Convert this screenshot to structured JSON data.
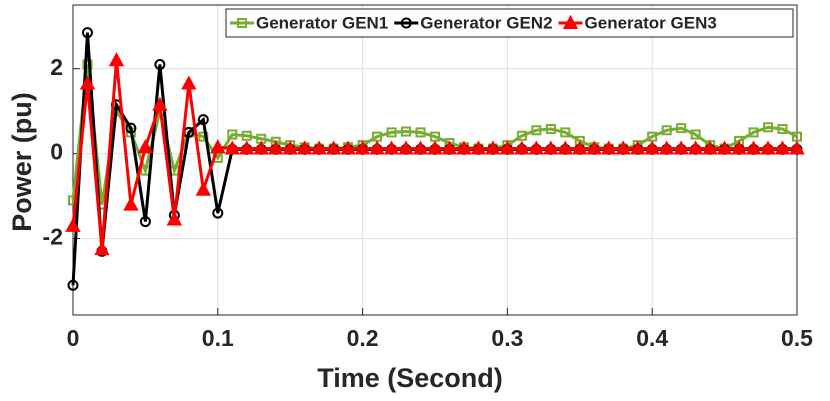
{
  "chart_data": {
    "type": "line",
    "xlabel": "Time (Second)",
    "ylabel": "Power (pu)",
    "x": [
      0,
      0.01,
      0.02,
      0.03,
      0.04,
      0.05,
      0.06,
      0.07,
      0.08,
      0.09,
      0.1,
      0.11,
      0.12,
      0.13,
      0.14,
      0.15,
      0.16,
      0.17,
      0.18,
      0.19,
      0.2,
      0.21,
      0.22,
      0.23,
      0.24,
      0.25,
      0.26,
      0.27,
      0.28,
      0.29,
      0.3,
      0.31,
      0.32,
      0.33,
      0.34,
      0.35,
      0.36,
      0.37,
      0.38,
      0.39,
      0.4,
      0.41,
      0.42,
      0.43,
      0.44,
      0.45,
      0.46,
      0.47,
      0.48,
      0.49,
      0.5
    ],
    "series": [
      {
        "name": "Generator GEN1",
        "color": "#77ac30",
        "marker": "square",
        "values": [
          -1.1,
          2.1,
          -1.2,
          1.0,
          0.5,
          -0.4,
          1.0,
          -0.4,
          0.5,
          0.4,
          -0.1,
          0.45,
          0.42,
          0.35,
          0.28,
          0.2,
          0.15,
          0.12,
          0.12,
          0.15,
          0.2,
          0.4,
          0.5,
          0.52,
          0.5,
          0.4,
          0.25,
          0.15,
          0.12,
          0.12,
          0.2,
          0.42,
          0.55,
          0.58,
          0.5,
          0.3,
          0.15,
          0.12,
          0.12,
          0.2,
          0.4,
          0.55,
          0.6,
          0.45,
          0.2,
          0.12,
          0.3,
          0.5,
          0.62,
          0.58,
          0.4
        ]
      },
      {
        "name": "Generator GEN2",
        "color": "#000000",
        "marker": "circle",
        "values": [
          -3.1,
          2.85,
          -2.3,
          1.15,
          0.6,
          -1.6,
          2.1,
          -1.45,
          0.5,
          0.8,
          -1.4,
          0.1,
          0.1,
          0.1,
          0.1,
          0.1,
          0.1,
          0.1,
          0.1,
          0.1,
          0.1,
          0.1,
          0.1,
          0.1,
          0.1,
          0.1,
          0.1,
          0.1,
          0.1,
          0.1,
          0.1,
          0.1,
          0.1,
          0.1,
          0.1,
          0.1,
          0.1,
          0.1,
          0.1,
          0.1,
          0.1,
          0.1,
          0.1,
          0.1,
          0.1,
          0.1,
          0.1,
          0.1,
          0.1,
          0.1,
          0.1
        ]
      },
      {
        "name": "Generator GEN3",
        "color": "#ff0000",
        "marker": "triangle",
        "values": [
          -1.7,
          1.65,
          -2.25,
          2.2,
          -1.2,
          0.15,
          1.15,
          -1.55,
          1.65,
          -0.85,
          0.15,
          0.12,
          0.12,
          0.12,
          0.12,
          0.12,
          0.12,
          0.12,
          0.12,
          0.12,
          0.12,
          0.12,
          0.12,
          0.12,
          0.12,
          0.12,
          0.12,
          0.12,
          0.12,
          0.12,
          0.12,
          0.12,
          0.12,
          0.12,
          0.12,
          0.12,
          0.12,
          0.12,
          0.12,
          0.12,
          0.12,
          0.12,
          0.12,
          0.12,
          0.12,
          0.12,
          0.12,
          0.12,
          0.12,
          0.12,
          0.12
        ]
      }
    ],
    "xlim": [
      0,
      0.5
    ],
    "xticks": [
      0,
      0.1,
      0.2,
      0.3,
      0.4,
      0.5
    ],
    "ylim": [
      -3.8,
      3.5
    ],
    "yticks": [
      -2,
      0,
      2
    ],
    "grid": true,
    "legend": "top-right"
  }
}
